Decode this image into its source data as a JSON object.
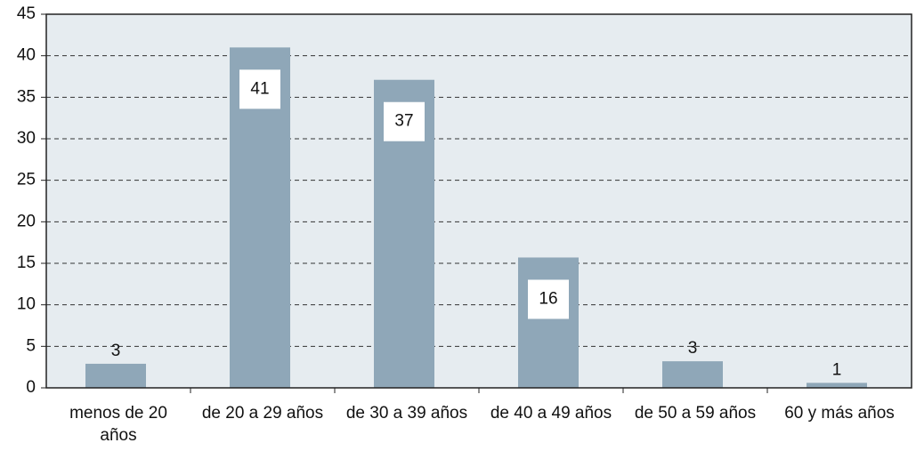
{
  "chart_data": {
    "type": "bar",
    "categories": [
      "menos de 20 años",
      "de 20 a 29 años",
      "de 30 a 39 años",
      "de 40 a 49 años",
      "de 50 a 59 años",
      "60 y más años"
    ],
    "values": [
      2.9,
      41,
      37.1,
      15.7,
      3.2,
      0.6
    ],
    "value_labels": [
      "3",
      "41",
      "37",
      "16",
      "3",
      "1"
    ],
    "color": "#8fa7b8",
    "ylim": [
      0,
      45
    ],
    "yticks": [
      0,
      5,
      10,
      15,
      20,
      25,
      30,
      35,
      40,
      45
    ],
    "grid": true
  }
}
